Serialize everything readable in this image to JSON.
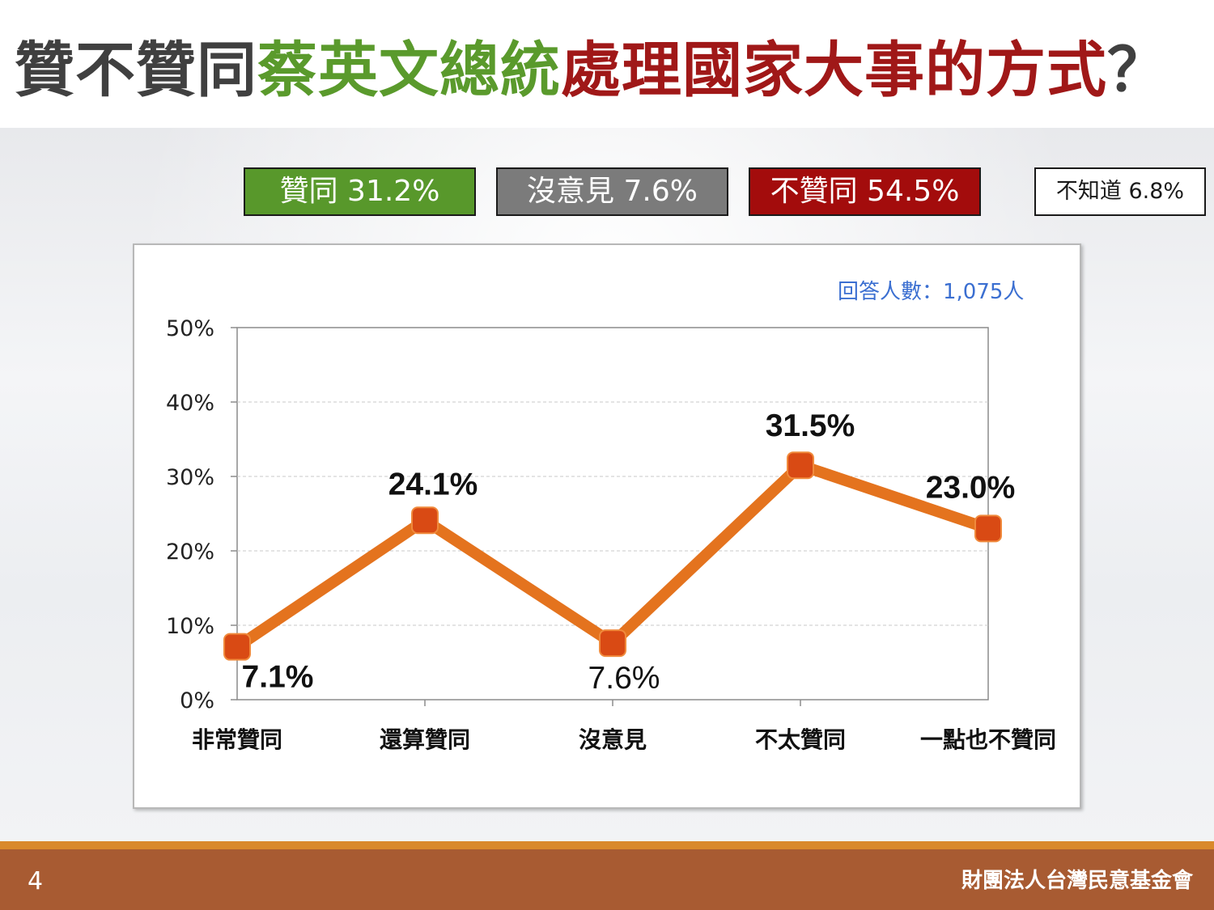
{
  "title": {
    "part1": "贊不贊同",
    "part2": "蔡英文總統",
    "part3": "處理國家大事的方式",
    "part4": "？"
  },
  "summary": {
    "approve": "贊同 31.2%",
    "neutral": "沒意見 7.6%",
    "disapprove": "不贊同 54.5%",
    "unknown": "不知道 6.8%"
  },
  "respondents": "回答人數：1,075人",
  "footer": {
    "page": "4",
    "org": "財團法人台灣民意基金會"
  },
  "colors": {
    "approve": "#58982b",
    "neutral": "#7b7b7b",
    "disapprove": "#a30c0c",
    "line": "#e4731e",
    "marker": "#d94a14",
    "respondents": "#3b6fd1",
    "footer": "#a85b32"
  },
  "chart_data": {
    "type": "line",
    "categories": [
      "非常贊同",
      "還算贊同",
      "沒意見",
      "不太贊同",
      "一點也不贊同"
    ],
    "values": [
      7.1,
      24.1,
      7.6,
      31.5,
      23.0
    ],
    "data_labels": [
      "7.1%",
      "24.1%",
      "7.6%",
      "31.5%",
      "23.0%"
    ],
    "ylim": [
      0,
      50
    ],
    "yticks": [
      0,
      10,
      20,
      30,
      40,
      50
    ],
    "ytick_labels": [
      "0%",
      "10%",
      "20%",
      "30%",
      "40%",
      "50%"
    ],
    "grid": true,
    "legend": false
  }
}
